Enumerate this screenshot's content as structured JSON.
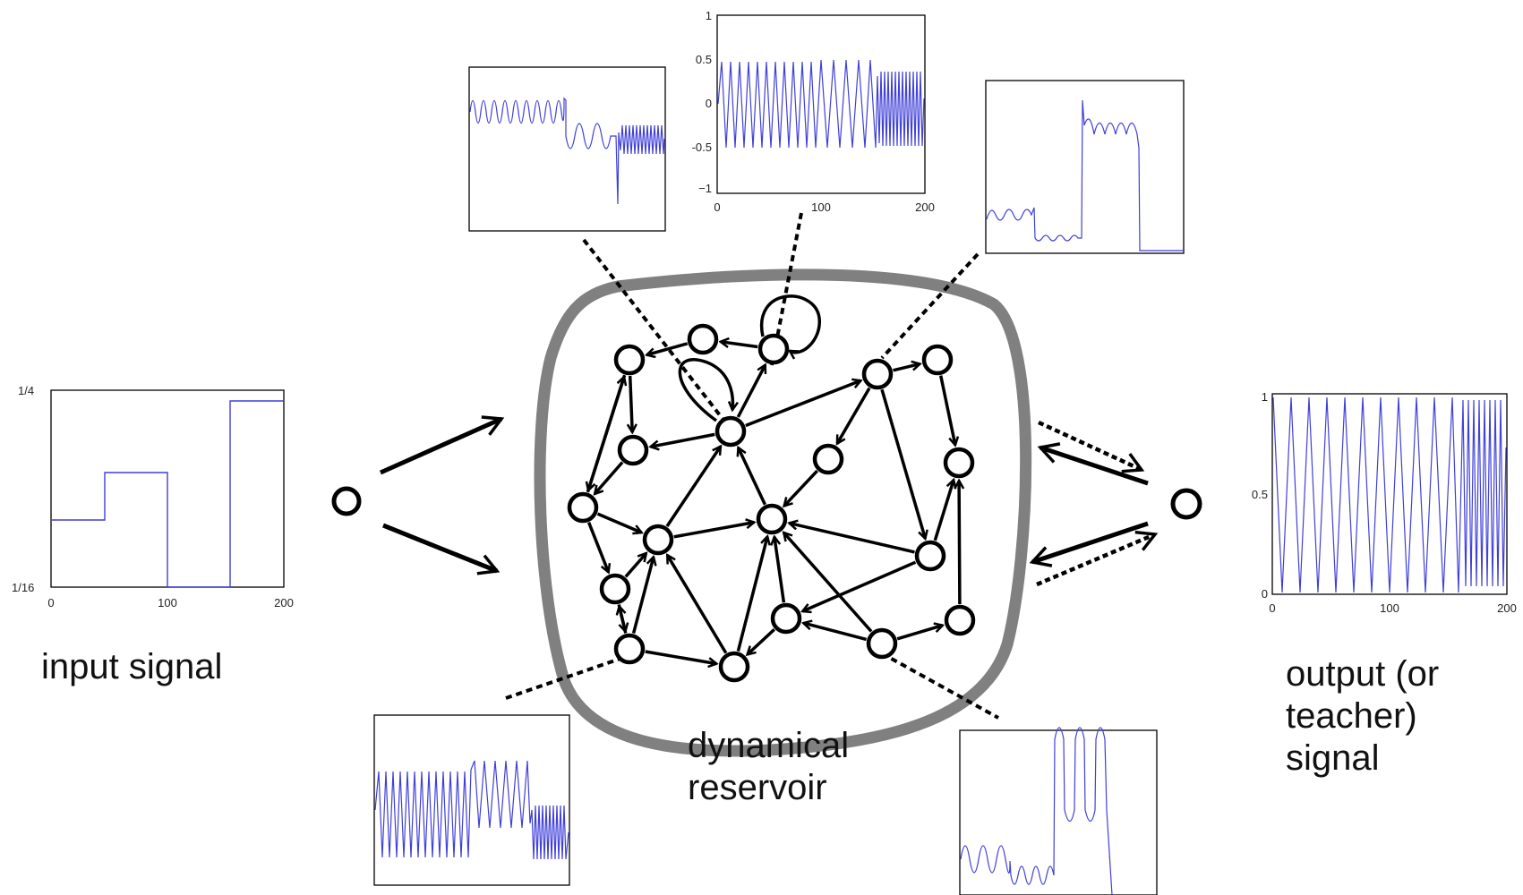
{
  "labels": {
    "input": "input signal",
    "reservoir": [
      "dynamical",
      "reservoir"
    ],
    "output": [
      "output (or",
      "teacher)",
      "signal"
    ]
  },
  "plots": {
    "input": {
      "y_ticks": [
        "1/4",
        "1/16"
      ],
      "x_ticks": [
        "0",
        "100",
        "200"
      ]
    },
    "top_center": {
      "y_ticks": [
        "1",
        "0.5",
        "0",
        "-0.5",
        "−1"
      ],
      "x_ticks": [
        "0",
        "100",
        "200"
      ]
    },
    "output": {
      "y_ticks": [
        "1",
        "0.5",
        "0"
      ],
      "x_ticks": [
        "0",
        "100",
        "200"
      ]
    }
  },
  "colors": {
    "signal": "#3f3fd9",
    "reservoir_outline": "#808080",
    "ink": "#000000"
  }
}
